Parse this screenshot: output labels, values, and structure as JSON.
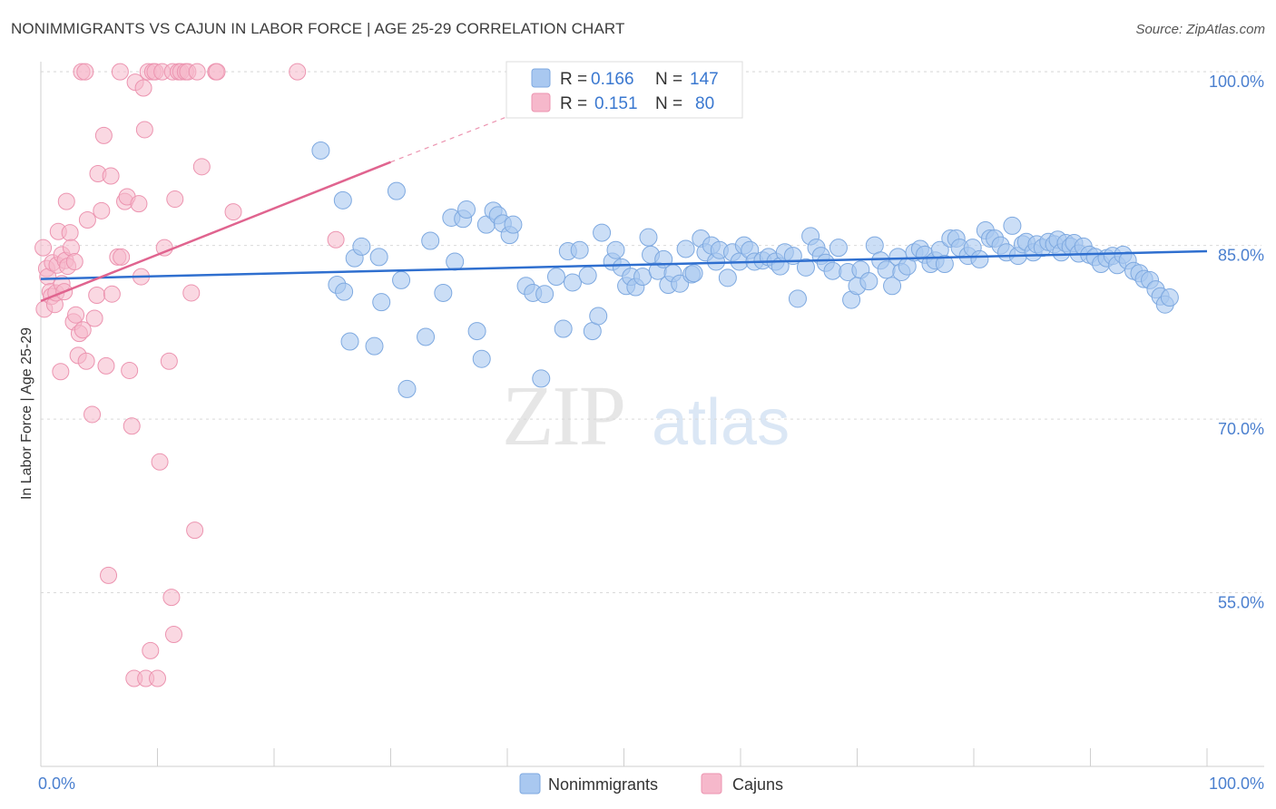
{
  "title": "NONIMMIGRANTS VS CAJUN IN LABOR FORCE | AGE 25-29 CORRELATION CHART",
  "source": "Source: ZipAtlas.com",
  "watermark": {
    "zip": "ZIP",
    "atlas": "atlas"
  },
  "colors": {
    "blue_fill": "#a9c8f0",
    "blue_stroke": "#7ea9e0",
    "blue_line": "#2f6fcf",
    "pink_fill": "#f6b8cb",
    "pink_stroke": "#ec94b0",
    "pink_line": "#e0648f",
    "axis_text": "#4a7fcf",
    "grid": "#d9d9d9"
  },
  "stats_legend": {
    "rows": [
      {
        "r_label": "R =",
        "r_value": "0.166",
        "n_label": "N =",
        "n_value": "147"
      },
      {
        "r_label": "R =",
        "r_value": "0.151",
        "n_label": "N =",
        "n_value": "80"
      }
    ]
  },
  "chart_data": {
    "type": "scatter",
    "title": "NONIMMIGRANTS VS CAJUN IN LABOR FORCE | AGE 25-29 CORRELATION CHART",
    "xlabel": "",
    "ylabel": "In Labor Force | Age 25-29",
    "xlim": [
      0,
      100
    ],
    "ylim": [
      40,
      101.5
    ],
    "x_tick_labels": [
      "0.0%",
      "100.0%"
    ],
    "y_ticks": [
      {
        "value": 100,
        "label": "100.0%"
      },
      {
        "value": 85,
        "label": "85.0%"
      },
      {
        "value": 70,
        "label": "70.0%"
      },
      {
        "value": 55,
        "label": "55.0%"
      }
    ],
    "grid": true,
    "legend": {
      "position": "bottom-center",
      "entries": [
        "Nonimmigrants",
        "Cajuns"
      ]
    },
    "series": [
      {
        "name": "Nonimmigrants",
        "r": 0.166,
        "n": 147,
        "trend": {
          "x": [
            0,
            100
          ],
          "y": [
            82.1,
            84.5
          ]
        },
        "points": [
          [
            24.0,
            93.2
          ],
          [
            25.4,
            81.6
          ],
          [
            25.9,
            88.9
          ],
          [
            26.0,
            81.0
          ],
          [
            26.5,
            76.7
          ],
          [
            26.9,
            83.9
          ],
          [
            27.5,
            84.9
          ],
          [
            28.6,
            76.3
          ],
          [
            29.0,
            84.0
          ],
          [
            29.2,
            80.1
          ],
          [
            30.5,
            89.7
          ],
          [
            30.9,
            82.0
          ],
          [
            31.4,
            72.6
          ],
          [
            33.0,
            77.1
          ],
          [
            33.4,
            85.4
          ],
          [
            34.5,
            80.9
          ],
          [
            35.2,
            87.4
          ],
          [
            35.5,
            83.6
          ],
          [
            36.2,
            87.3
          ],
          [
            36.5,
            88.1
          ],
          [
            37.4,
            77.6
          ],
          [
            37.8,
            75.2
          ],
          [
            38.2,
            86.8
          ],
          [
            38.8,
            88.0
          ],
          [
            39.2,
            87.6
          ],
          [
            39.6,
            86.9
          ],
          [
            40.2,
            85.9
          ],
          [
            40.5,
            86.8
          ],
          [
            41.6,
            81.5
          ],
          [
            42.2,
            80.9
          ],
          [
            42.9,
            73.5
          ],
          [
            43.2,
            80.8
          ],
          [
            44.2,
            82.3
          ],
          [
            44.8,
            77.8
          ],
          [
            45.2,
            84.5
          ],
          [
            45.6,
            81.8
          ],
          [
            46.2,
            84.6
          ],
          [
            46.9,
            82.4
          ],
          [
            47.3,
            77.6
          ],
          [
            47.8,
            78.9
          ],
          [
            48.1,
            86.1
          ],
          [
            49.0,
            83.6
          ],
          [
            49.3,
            84.6
          ],
          [
            49.8,
            83.1
          ],
          [
            50.2,
            81.5
          ],
          [
            50.6,
            82.3
          ],
          [
            51.0,
            81.4
          ],
          [
            51.6,
            82.3
          ],
          [
            52.1,
            85.7
          ],
          [
            52.3,
            84.2
          ],
          [
            52.9,
            82.8
          ],
          [
            53.4,
            83.8
          ],
          [
            53.8,
            81.6
          ],
          [
            54.2,
            82.6
          ],
          [
            54.8,
            81.7
          ],
          [
            55.3,
            84.7
          ],
          [
            55.8,
            82.5
          ],
          [
            56.0,
            82.6
          ],
          [
            56.6,
            85.6
          ],
          [
            57.0,
            84.4
          ],
          [
            57.5,
            85.0
          ],
          [
            57.9,
            83.6
          ],
          [
            58.2,
            84.6
          ],
          [
            58.9,
            82.2
          ],
          [
            59.3,
            84.4
          ],
          [
            59.9,
            83.6
          ],
          [
            60.3,
            85.0
          ],
          [
            60.8,
            84.6
          ],
          [
            61.2,
            83.6
          ],
          [
            61.9,
            83.7
          ],
          [
            62.4,
            84.0
          ],
          [
            63.0,
            83.6
          ],
          [
            63.4,
            83.2
          ],
          [
            63.8,
            84.4
          ],
          [
            64.5,
            84.1
          ],
          [
            64.9,
            80.4
          ],
          [
            65.6,
            83.1
          ],
          [
            66.0,
            85.8
          ],
          [
            66.5,
            84.8
          ],
          [
            66.9,
            84.1
          ],
          [
            67.3,
            83.5
          ],
          [
            67.9,
            82.8
          ],
          [
            68.4,
            84.8
          ],
          [
            69.2,
            82.7
          ],
          [
            69.5,
            80.3
          ],
          [
            70.0,
            81.5
          ],
          [
            70.3,
            82.9
          ],
          [
            71.0,
            81.9
          ],
          [
            71.5,
            85.0
          ],
          [
            72.0,
            83.7
          ],
          [
            72.5,
            82.9
          ],
          [
            73.0,
            81.5
          ],
          [
            73.5,
            84.0
          ],
          [
            73.8,
            82.7
          ],
          [
            74.3,
            83.2
          ],
          [
            74.9,
            84.4
          ],
          [
            75.4,
            84.7
          ],
          [
            75.8,
            84.2
          ],
          [
            76.3,
            83.4
          ],
          [
            76.7,
            83.7
          ],
          [
            77.1,
            84.6
          ],
          [
            77.5,
            83.4
          ],
          [
            78.0,
            85.6
          ],
          [
            78.5,
            85.6
          ],
          [
            78.8,
            84.8
          ],
          [
            79.5,
            84.1
          ],
          [
            79.9,
            84.8
          ],
          [
            80.5,
            83.8
          ],
          [
            81.0,
            86.3
          ],
          [
            81.4,
            85.6
          ],
          [
            81.8,
            85.6
          ],
          [
            82.3,
            85.0
          ],
          [
            82.8,
            84.4
          ],
          [
            83.3,
            86.7
          ],
          [
            83.8,
            84.1
          ],
          [
            84.2,
            85.1
          ],
          [
            84.5,
            85.3
          ],
          [
            85.1,
            84.4
          ],
          [
            85.4,
            85.1
          ],
          [
            85.9,
            84.8
          ],
          [
            86.4,
            85.3
          ],
          [
            86.9,
            85.1
          ],
          [
            87.2,
            85.5
          ],
          [
            87.5,
            84.4
          ],
          [
            87.9,
            85.2
          ],
          [
            88.3,
            84.9
          ],
          [
            88.6,
            85.2
          ],
          [
            89.0,
            84.3
          ],
          [
            89.4,
            84.9
          ],
          [
            89.9,
            84.2
          ],
          [
            90.4,
            84.0
          ],
          [
            90.9,
            83.4
          ],
          [
            91.4,
            83.9
          ],
          [
            91.9,
            84.1
          ],
          [
            92.3,
            83.3
          ],
          [
            92.8,
            84.2
          ],
          [
            93.2,
            83.7
          ],
          [
            93.7,
            82.8
          ],
          [
            94.2,
            82.6
          ],
          [
            94.6,
            82.1
          ],
          [
            95.1,
            82.0
          ],
          [
            95.6,
            81.2
          ],
          [
            96.0,
            80.6
          ],
          [
            96.4,
            79.9
          ],
          [
            96.8,
            80.5
          ]
        ]
      },
      {
        "name": "Cajuns",
        "r": 0.151,
        "n": 80,
        "trend": {
          "x": [
            0,
            30
          ],
          "y": [
            80.2,
            92.2
          ]
        },
        "trend_dashed": {
          "x": [
            30,
            43
          ],
          "y": [
            92.2,
            97.3
          ]
        },
        "points": [
          [
            0.2,
            84.8
          ],
          [
            0.3,
            79.5
          ],
          [
            0.5,
            83.0
          ],
          [
            0.6,
            82.3
          ],
          [
            0.8,
            81.0
          ],
          [
            0.9,
            80.6
          ],
          [
            1.0,
            83.5
          ],
          [
            1.2,
            79.9
          ],
          [
            1.3,
            80.9
          ],
          [
            1.4,
            83.3
          ],
          [
            1.5,
            86.2
          ],
          [
            1.7,
            74.1
          ],
          [
            1.8,
            84.2
          ],
          [
            1.8,
            81.7
          ],
          [
            2.0,
            81.0
          ],
          [
            2.1,
            83.7
          ],
          [
            2.2,
            88.8
          ],
          [
            2.3,
            83.2
          ],
          [
            2.5,
            86.1
          ],
          [
            2.6,
            84.8
          ],
          [
            2.8,
            78.4
          ],
          [
            2.9,
            83.6
          ],
          [
            3.0,
            79.0
          ],
          [
            3.3,
            77.4
          ],
          [
            3.5,
            100.0
          ],
          [
            3.6,
            77.7
          ],
          [
            3.8,
            100.0
          ],
          [
            4.0,
            87.2
          ],
          [
            4.4,
            70.4
          ],
          [
            4.6,
            78.7
          ],
          [
            4.8,
            80.7
          ],
          [
            4.9,
            91.2
          ],
          [
            5.2,
            88.0
          ],
          [
            5.4,
            94.5
          ],
          [
            5.6,
            74.6
          ],
          [
            5.8,
            56.5
          ],
          [
            6.0,
            91.0
          ],
          [
            6.1,
            80.8
          ],
          [
            6.6,
            84.0
          ],
          [
            6.8,
            100.0
          ],
          [
            6.9,
            84.0
          ],
          [
            7.2,
            88.8
          ],
          [
            7.4,
            89.2
          ],
          [
            7.6,
            74.2
          ],
          [
            7.8,
            69.4
          ],
          [
            8.0,
            47.6
          ],
          [
            8.1,
            99.1
          ],
          [
            8.4,
            88.6
          ],
          [
            8.6,
            82.3
          ],
          [
            8.8,
            98.6
          ],
          [
            8.9,
            95.0
          ],
          [
            9.0,
            47.6
          ],
          [
            9.2,
            100.0
          ],
          [
            9.4,
            50.0
          ],
          [
            9.6,
            100.0
          ],
          [
            9.8,
            100.0
          ],
          [
            10.0,
            47.6
          ],
          [
            10.2,
            66.3
          ],
          [
            10.4,
            100.0
          ],
          [
            10.6,
            84.8
          ],
          [
            11.0,
            75.0
          ],
          [
            11.2,
            54.6
          ],
          [
            11.3,
            100.0
          ],
          [
            11.4,
            51.4
          ],
          [
            11.5,
            89.0
          ],
          [
            11.8,
            100.0
          ],
          [
            12.0,
            100.0
          ],
          [
            12.4,
            100.0
          ],
          [
            12.6,
            100.0
          ],
          [
            12.9,
            80.9
          ],
          [
            13.2,
            60.4
          ],
          [
            13.4,
            100.0
          ],
          [
            13.8,
            91.8
          ],
          [
            15.0,
            100.0
          ],
          [
            15.1,
            100.0
          ],
          [
            16.5,
            87.9
          ],
          [
            22.0,
            100.0
          ],
          [
            25.3,
            85.5
          ],
          [
            3.2,
            75.5
          ],
          [
            3.9,
            75.0
          ]
        ]
      }
    ]
  }
}
